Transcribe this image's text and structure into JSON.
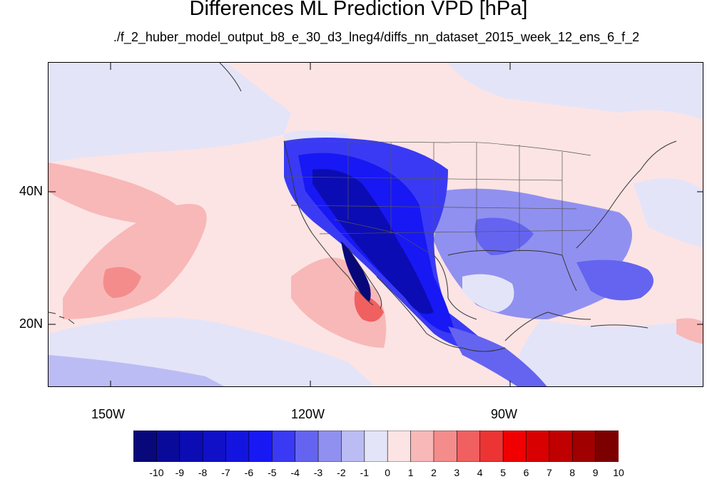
{
  "title": "Differences ML Prediction VPD [hPa]",
  "subtitle": "./f_2_huber_model_output_b8_e_30_d3_lneg4/diffs_nn_dataset_2015_week_12_ens_6_f_2",
  "map": {
    "projection": "cylindrical equidistant",
    "lon_range": [
      -160,
      -58
    ],
    "lat_range": [
      11,
      60
    ],
    "lat_labels": [
      "40N",
      "20N"
    ],
    "lon_labels": [
      "150W",
      "120W",
      "90W"
    ],
    "regions": [
      "North America",
      "Mexico",
      "Hawaii",
      "Gulf of Mexico",
      "Caribbean"
    ]
  },
  "colorbar": {
    "labels": [
      "-10",
      "-9",
      "-8",
      "-7",
      "-6",
      "-5",
      "-4",
      "-3",
      "-2",
      "-1",
      "0",
      "1",
      "2",
      "3",
      "4",
      "5",
      "6",
      "7",
      "8",
      "9",
      "10"
    ],
    "colors": [
      "#08087a",
      "#0a0a9a",
      "#0c0cb4",
      "#1010c8",
      "#1414e0",
      "#1818f4",
      "#3a3af4",
      "#6464f0",
      "#9090f0",
      "#bcbcf4",
      "#e4e4f8",
      "#fce4e4",
      "#f8b8b8",
      "#f48c8c",
      "#f06060",
      "#ec3434",
      "#f00000",
      "#d80000",
      "#c00000",
      "#a00000",
      "#7c0000"
    ]
  }
}
